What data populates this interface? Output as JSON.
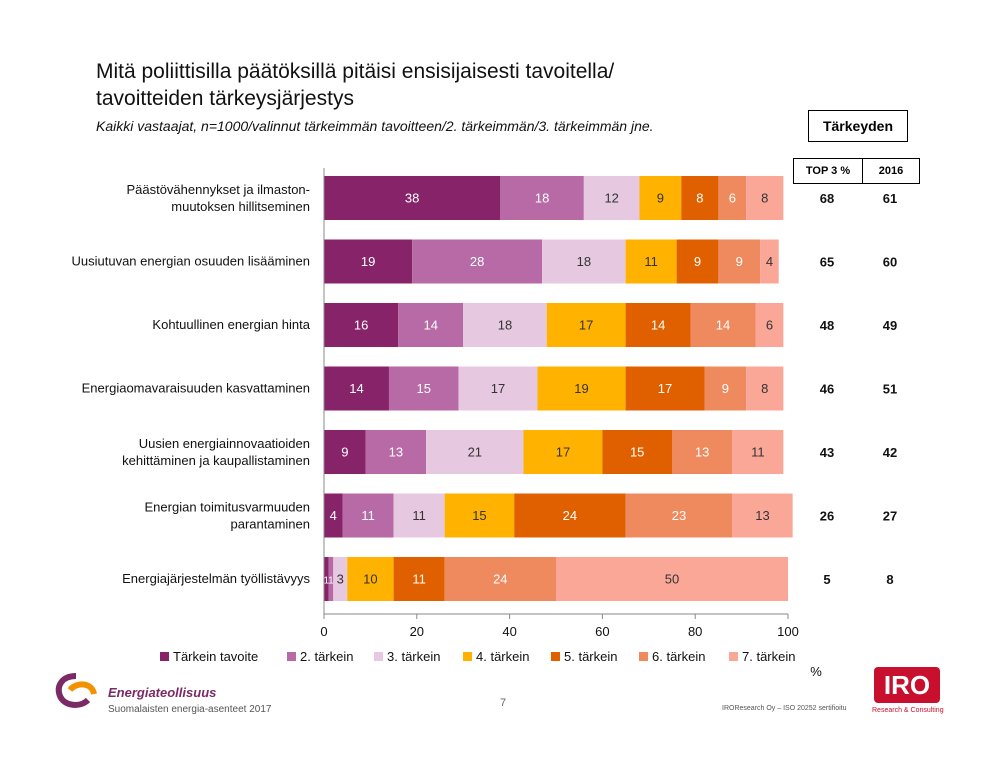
{
  "header": {
    "title_line1": "Mitä poliittisilla päätöksillä pitäisi ensisijaisesti tavoitella/",
    "title_line2": "tavoitteiden tärkeysjärjestys",
    "subtitle": "Kaikki vastaajat, n=1000/valinnut tärkeimmän tavoitteen/2. tärkeimmän/3. tärkeimmän jne.",
    "tarkeyden": "Tärkeyden",
    "col_top3": "TOP 3 %",
    "col_2016": "2016"
  },
  "chart_data": {
    "type": "bar",
    "orientation": "horizontal",
    "stacked": true,
    "categories": [
      "Päästövähennykset ja ilmaston-\nmuutoksen hillitseminen",
      "Uusiutuvan energian osuuden lisääminen",
      "Kohtuullinen energian hinta",
      "Energiaomavaraisuuden kasvattaminen",
      "Uusien energiainnovaatioiden\nkehittäminen ja kaupallistaminen",
      "Energian toimitusvarmuuden\nparantaminen",
      "Energiajärjestelmän työllistävyys"
    ],
    "series": [
      {
        "name": "Tärkein tavoite",
        "color": "#862369",
        "values": [
          38,
          19,
          16,
          14,
          9,
          4,
          1
        ]
      },
      {
        "name": "2. tärkein",
        "color": "#b76aa6",
        "values": [
          18,
          28,
          14,
          15,
          13,
          11,
          1
        ]
      },
      {
        "name": "3. tärkein",
        "color": "#e6c8e0",
        "values": [
          12,
          18,
          18,
          17,
          21,
          11,
          3
        ]
      },
      {
        "name": "4. tärkein",
        "color": "#ffb300",
        "values": [
          9,
          11,
          17,
          19,
          17,
          15,
          10
        ]
      },
      {
        "name": "5. tärkein",
        "color": "#e06000",
        "values": [
          8,
          9,
          14,
          17,
          15,
          24,
          11
        ]
      },
      {
        "name": "6. tärkein",
        "color": "#ef8a5e",
        "values": [
          6,
          9,
          14,
          9,
          13,
          23,
          24
        ]
      },
      {
        "name": "7. tärkein",
        "color": "#fba798",
        "values": [
          8,
          4,
          6,
          8,
          11,
          13,
          50
        ]
      }
    ],
    "xlim": [
      0,
      100
    ],
    "xticks": [
      0,
      20,
      40,
      60,
      80,
      100
    ],
    "xunit": "%",
    "top3": [
      68,
      65,
      48,
      46,
      43,
      26,
      5
    ],
    "y2016": [
      61,
      60,
      49,
      51,
      42,
      27,
      8
    ],
    "legend_position": "bottom"
  },
  "footer": {
    "brand": "Energiateollisuus",
    "subtitle": "Suomalaisten energia-asenteet 2017",
    "page": "7",
    "cert": "IROResearch Oy – ISO 20252 sertifioitu",
    "iro": "IRO",
    "iro_sub": "Research & Consulting"
  }
}
